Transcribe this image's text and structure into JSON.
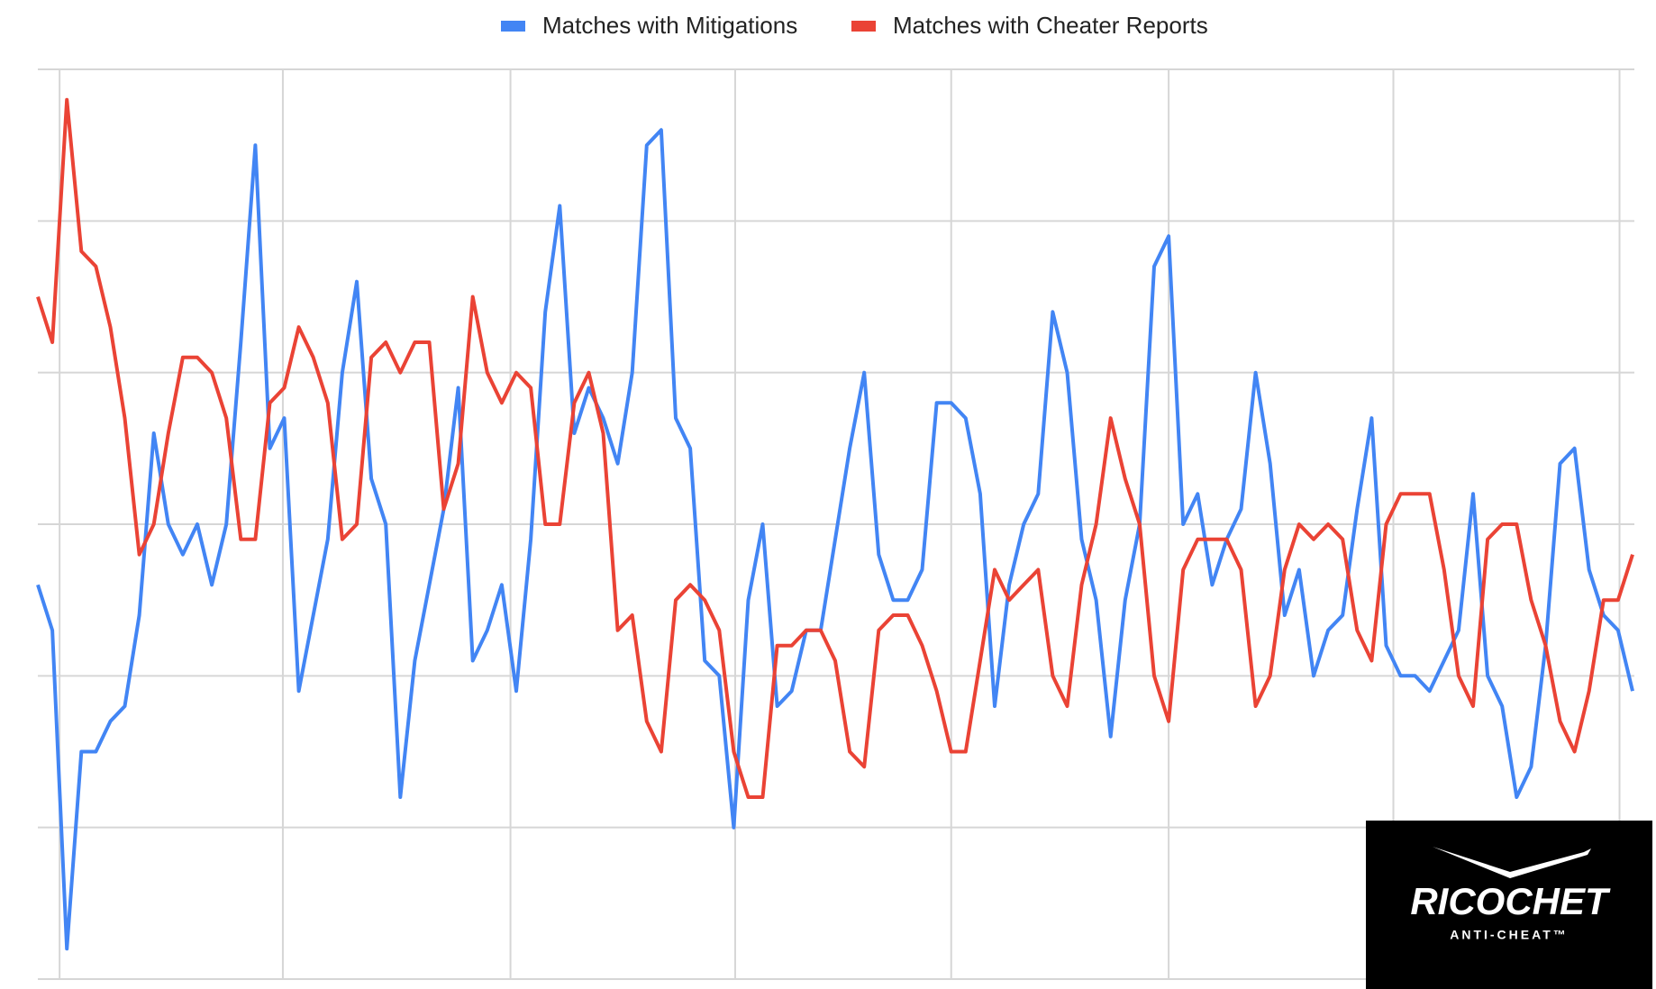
{
  "chart_data": {
    "type": "line",
    "categories": [
      null,
      null,
      null,
      null,
      null,
      null,
      null,
      null,
      null,
      null,
      null,
      null,
      null,
      null,
      null,
      null,
      null,
      null,
      null,
      null,
      null,
      null,
      null,
      null,
      null,
      null,
      null,
      null,
      null,
      null,
      null,
      null,
      null,
      null,
      null,
      null,
      null,
      null,
      null,
      null,
      null,
      null,
      null,
      null,
      null,
      null,
      null,
      null,
      null,
      null,
      null,
      null,
      null,
      null,
      null,
      null,
      null,
      null,
      null,
      null,
      null,
      null,
      null,
      null,
      null,
      null,
      null,
      null,
      null,
      null,
      null,
      null,
      null,
      null,
      null,
      null,
      null,
      null,
      null,
      null,
      null,
      null,
      null,
      null,
      null,
      null,
      null,
      null,
      null,
      null,
      null,
      null,
      null,
      null,
      null,
      null,
      null,
      null,
      null,
      null,
      null,
      null,
      null,
      null,
      null,
      null,
      null,
      null,
      null,
      null,
      null
    ],
    "series": [
      {
        "name": "Matches with Mitigations",
        "color": "#4285f4",
        "values": [
          2.6,
          2.3,
          0.2,
          1.5,
          1.5,
          1.7,
          1.8,
          2.4,
          3.6,
          3.0,
          2.8,
          3.0,
          2.6,
          3.0,
          4.2,
          5.5,
          3.5,
          3.7,
          1.9,
          2.4,
          2.9,
          4.0,
          4.6,
          3.3,
          3.0,
          1.2,
          2.1,
          2.6,
          3.1,
          3.9,
          2.1,
          2.3,
          2.6,
          1.9,
          2.9,
          4.4,
          5.1,
          3.6,
          3.9,
          3.7,
          3.4,
          4.0,
          5.5,
          5.6,
          3.7,
          3.5,
          2.1,
          2.0,
          1.0,
          2.5,
          3.0,
          1.8,
          1.9,
          2.3,
          2.3,
          2.9,
          3.5,
          4.0,
          2.8,
          2.5,
          2.5,
          2.7,
          3.8,
          3.8,
          3.7,
          3.2,
          1.8,
          2.6,
          3.0,
          3.2,
          4.4,
          4.0,
          2.9,
          2.5,
          1.6,
          2.5,
          3.0,
          4.7,
          4.9,
          3.0,
          3.2,
          2.6,
          2.9,
          3.1,
          4.0,
          3.4,
          2.4,
          2.7,
          2.0,
          2.3,
          2.4,
          3.1,
          3.7,
          2.2,
          2.0,
          2.0,
          1.9,
          2.1,
          2.3,
          3.2,
          2.0,
          1.8,
          1.2,
          1.4,
          2.2,
          3.4,
          3.5,
          2.7,
          2.4,
          2.3,
          1.9
        ]
      },
      {
        "name": "Matches with Cheater Reports",
        "color": "#ea4335",
        "values": [
          4.5,
          4.2,
          5.8,
          4.8,
          4.7,
          4.3,
          3.7,
          2.8,
          3.0,
          3.6,
          4.1,
          4.1,
          4.0,
          3.7,
          2.9,
          2.9,
          3.8,
          3.9,
          4.3,
          4.1,
          3.8,
          2.9,
          3.0,
          4.1,
          4.2,
          4.0,
          4.2,
          4.2,
          3.1,
          3.4,
          4.5,
          4.0,
          3.8,
          4.0,
          3.9,
          3.0,
          3.0,
          3.8,
          4.0,
          3.6,
          2.3,
          2.4,
          1.7,
          1.5,
          2.5,
          2.6,
          2.5,
          2.3,
          1.5,
          1.2,
          1.2,
          2.2,
          2.2,
          2.3,
          2.3,
          2.1,
          1.5,
          1.4,
          2.3,
          2.4,
          2.4,
          2.2,
          1.9,
          1.5,
          1.5,
          2.1,
          2.7,
          2.5,
          2.6,
          2.7,
          2.0,
          1.8,
          2.6,
          3.0,
          3.7,
          3.3,
          3.0,
          2.0,
          1.7,
          2.7,
          2.9,
          2.9,
          2.9,
          2.7,
          1.8,
          2.0,
          2.7,
          3.0,
          2.9,
          3.0,
          2.9,
          2.3,
          2.1,
          3.0,
          3.2,
          3.2,
          3.2,
          2.7,
          2.0,
          1.8,
          2.9,
          3.0,
          3.0,
          2.5,
          2.2,
          1.7,
          1.5,
          1.9,
          2.5,
          2.5,
          2.8
        ]
      }
    ],
    "xlim": [
      0,
      110
    ],
    "xticks": [
      1.5,
      16.9,
      32.6,
      48.1,
      63.0,
      78.0,
      93.5,
      109.1
    ],
    "ylim": [
      0,
      6
    ],
    "yticks": [
      0,
      1,
      2,
      3,
      4,
      5,
      6
    ],
    "grid": true,
    "legend": "top"
  },
  "logo": {
    "name": "RICOCHET",
    "tagline": "ANTI-CHEAT™"
  }
}
